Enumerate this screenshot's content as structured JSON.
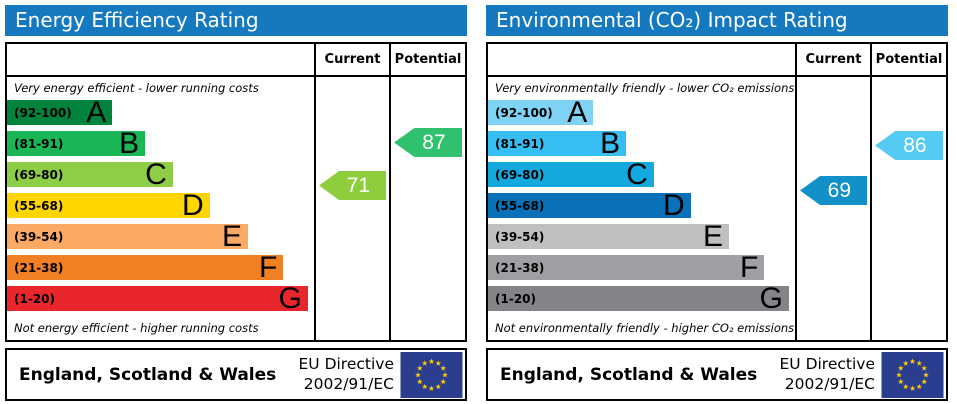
{
  "chart_data": [
    {
      "type": "bar",
      "title": "Energy Efficiency Rating",
      "categories": [
        "A (92-100)",
        "B (81-91)",
        "C (69-80)",
        "D (55-68)",
        "E (39-54)",
        "F (21-38)",
        "G (1-20)"
      ],
      "values": [
        100,
        91,
        80,
        68,
        54,
        38,
        20
      ],
      "series": [
        {
          "name": "Current",
          "values": [
            71
          ]
        },
        {
          "name": "Potential",
          "values": [
            87
          ]
        }
      ],
      "xlabel": "",
      "ylabel": "",
      "ylim": [
        1,
        100
      ],
      "annotations": [
        "Very energy efficient - lower running costs",
        "Not energy efficient - higher running costs"
      ]
    },
    {
      "type": "bar",
      "title": "Environmental (CO₂) Impact Rating",
      "categories": [
        "A (92-100)",
        "B (81-91)",
        "C (69-80)",
        "D (55-68)",
        "E (39-54)",
        "F (21-38)",
        "G (1-20)"
      ],
      "values": [
        100,
        91,
        80,
        68,
        54,
        38,
        20
      ],
      "series": [
        {
          "name": "Current",
          "values": [
            69
          ]
        },
        {
          "name": "Potential",
          "values": [
            86
          ]
        }
      ],
      "xlabel": "",
      "ylabel": "",
      "ylim": [
        1,
        100
      ],
      "annotations": [
        "Very environmentally friendly - lower CO₂ emissions",
        "Not environmentally friendly - higher CO₂ emissions"
      ]
    }
  ],
  "eu_flag": {
    "bg": "#2b3d8e",
    "star": "#ffcc00"
  },
  "panels": [
    {
      "title": "Energy Efficiency Rating",
      "title_bg": "#1479bf",
      "header": {
        "current": "Current",
        "potential": "Potential"
      },
      "top_note": "Very energy efficient - lower running costs",
      "bottom_note": "Not energy efficient - higher running costs",
      "bands": [
        {
          "letter": "A",
          "range": "(92-100)",
          "low": 92,
          "high": 100,
          "color": "#00843d",
          "width_pct": 34.3
        },
        {
          "letter": "B",
          "range": "(81-91)",
          "low": 81,
          "high": 91,
          "color": "#1ab554",
          "width_pct": 45
        },
        {
          "letter": "C",
          "range": "(69-80)",
          "low": 69,
          "high": 80,
          "color": "#8dce46",
          "width_pct": 54
        },
        {
          "letter": "D",
          "range": "(55-68)",
          "low": 55,
          "high": 68,
          "color": "#ffd500",
          "width_pct": 66
        },
        {
          "letter": "E",
          "range": "(39-54)",
          "low": 39,
          "high": 54,
          "color": "#fbaa65",
          "width_pct": 78.5
        },
        {
          "letter": "F",
          "range": "(21-38)",
          "low": 21,
          "high": 38,
          "color": "#f08023",
          "width_pct": 90
        },
        {
          "letter": "G",
          "range": "(1-20)",
          "low": 1,
          "high": 20,
          "color": "#e9262b",
          "width_pct": 98
        }
      ],
      "current": {
        "value": 71,
        "color": "#8ece3d"
      },
      "potential": {
        "value": 87,
        "color": "#2fc16e"
      },
      "footer": {
        "region": "England, Scotland & Wales",
        "directive_line1": "EU Directive",
        "directive_line2": "2002/91/EC"
      }
    },
    {
      "title": "Environmental (CO₂) Impact Rating",
      "title_bg": "#1479bf",
      "header": {
        "current": "Current",
        "potential": "Potential"
      },
      "top_note": "Very environmentally friendly - lower CO₂ emissions",
      "bottom_note": "Not environmentally friendly - higher CO₂ emissions",
      "bands": [
        {
          "letter": "A",
          "range": "(92-100)",
          "low": 92,
          "high": 100,
          "color": "#7ed3f5",
          "width_pct": 34.3
        },
        {
          "letter": "B",
          "range": "(81-91)",
          "low": 81,
          "high": 91,
          "color": "#36bef2",
          "width_pct": 45
        },
        {
          "letter": "C",
          "range": "(69-80)",
          "low": 69,
          "high": 80,
          "color": "#13a9df",
          "width_pct": 54
        },
        {
          "letter": "D",
          "range": "(55-68)",
          "low": 55,
          "high": 68,
          "color": "#0871b8",
          "width_pct": 66
        },
        {
          "letter": "E",
          "range": "(39-54)",
          "low": 39,
          "high": 54,
          "color": "#bdbfc1",
          "width_pct": 78.5
        },
        {
          "letter": "F",
          "range": "(21-38)",
          "low": 21,
          "high": 38,
          "color": "#9ea0a3",
          "width_pct": 90
        },
        {
          "letter": "G",
          "range": "(1-20)",
          "low": 1,
          "high": 20,
          "color": "#828487",
          "width_pct": 98
        }
      ],
      "current": {
        "value": 69,
        "color": "#1191c8"
      },
      "potential": {
        "value": 86,
        "color": "#55cbf4"
      },
      "footer": {
        "region": "England, Scotland & Wales",
        "directive_line1": "EU Directive",
        "directive_line2": "2002/91/EC"
      }
    }
  ]
}
